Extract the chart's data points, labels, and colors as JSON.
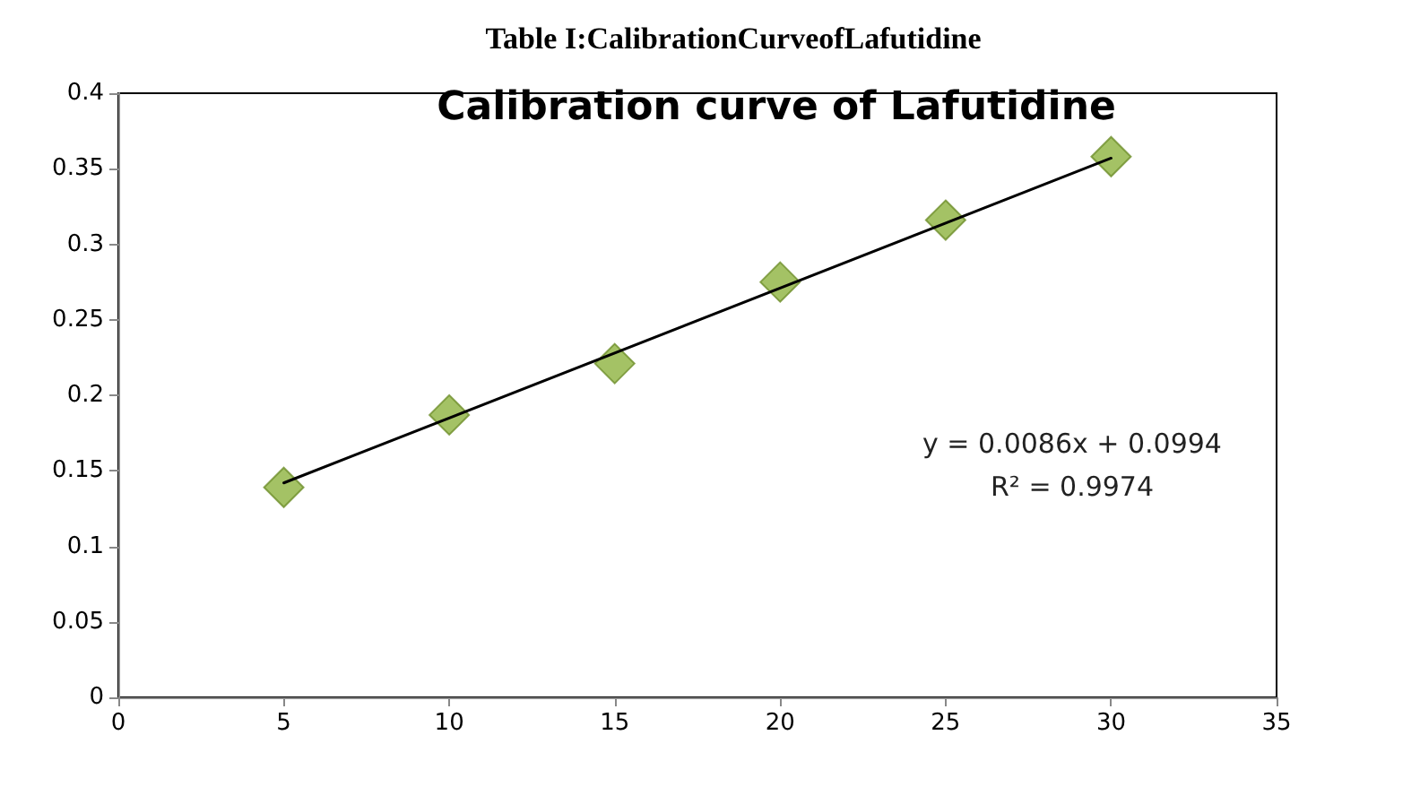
{
  "chart_data": {
    "type": "scatter",
    "title": "Calibration curve of Lafutidine",
    "subtitle": "Table I:CalibrationCurveofLafutidine",
    "x": [
      5,
      10,
      15,
      20,
      25,
      30
    ],
    "series": [
      {
        "color": "#8db33f",
        "marker": "diamond",
        "values": [
          0.139,
          0.187,
          0.221,
          0.275,
          0.316,
          0.358
        ]
      },
      {
        "type": "line",
        "color": "#000000",
        "marker": "none",
        "line_style": "solid",
        "x": [
          5,
          30
        ],
        "values": [
          0.142,
          0.357
        ]
      }
    ],
    "xlim": [
      0,
      35
    ],
    "xticks": [
      0,
      5,
      10,
      15,
      20,
      25,
      30,
      35
    ],
    "ylim": [
      0,
      0.4
    ],
    "yticks": [
      0,
      0.05,
      0.1,
      0.15,
      0.2,
      0.25,
      0.3,
      0.35,
      0.4
    ],
    "grid": false,
    "annotations": [
      "y = 0.0086x + 0.0994",
      "R² = 0.9974"
    ]
  }
}
